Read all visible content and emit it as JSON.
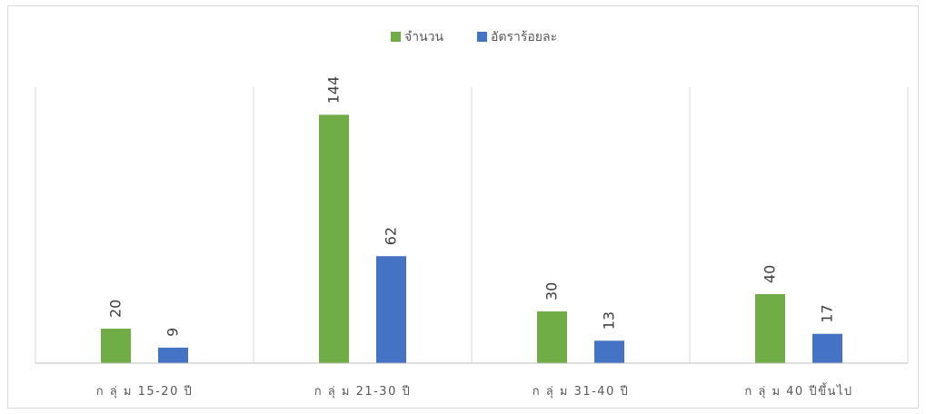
{
  "chart_data": {
    "type": "bar",
    "title": "",
    "xlabel": "",
    "ylabel": "",
    "categories": [
      "ก ลุ่ ม 15-20 ปี",
      "ก ลุ่ ม 21-30 ปี",
      "ก ลุ่ ม 31-40 ปี",
      "ก ลุ่ ม 40 ปีขึ้นไป"
    ],
    "series": [
      {
        "name": "จำนวน",
        "color": "#70ad47",
        "values": [
          20,
          144,
          30,
          40
        ]
      },
      {
        "name": "อัตราร้อยละ",
        "color": "#4472c4",
        "values": [
          9,
          62,
          13,
          17
        ]
      }
    ],
    "ylim": [
      0,
      160
    ],
    "grid": false,
    "legend_position": "top",
    "data_labels": "rotated"
  }
}
